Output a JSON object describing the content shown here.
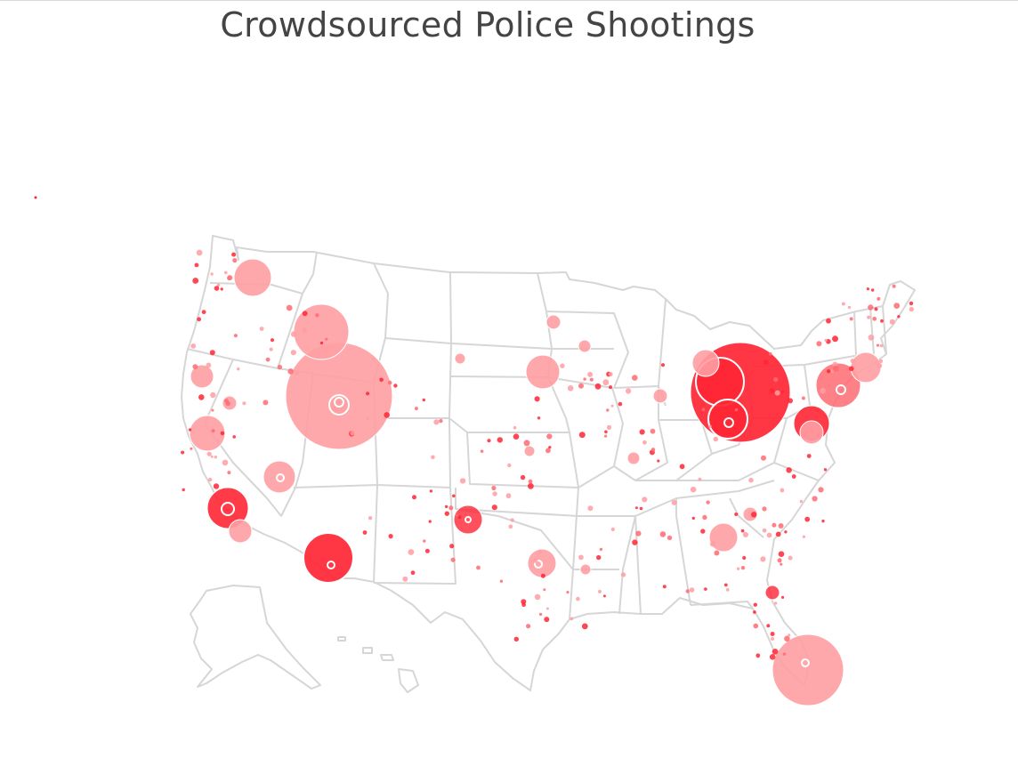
{
  "title": "Crowdsourced Police Shootings",
  "colors": {
    "bubble_light": "#ff9ea3",
    "bubble_mid": "#ff6b73",
    "bubble_dark": "#ff2634",
    "state_border": "#d6d6d6"
  },
  "chart_data": {
    "type": "scatter",
    "title": "Crowdsourced Police Shootings",
    "map": "United States (Albers USA)",
    "encoding": "bubble size = number of incidents",
    "legend": "none",
    "note": "bubble locations read as approximate lon/lat of cities",
    "points": [
      {
        "lon": -122.7,
        "lat": 45.5,
        "size": 20
      },
      {
        "lon": -116.2,
        "lat": 43.6,
        "size": 30
      },
      {
        "lon": -112.0,
        "lat": 40.7,
        "size": 90
      },
      {
        "lon": -111.9,
        "lat": 40.8,
        "size": 8
      },
      {
        "lon": -121.5,
        "lat": 38.6,
        "size": 22
      },
      {
        "lon": -123.3,
        "lat": 40.8,
        "size": 12
      },
      {
        "lon": -115.1,
        "lat": 36.2,
        "size": 16
      },
      {
        "lon": -118.3,
        "lat": 34.1,
        "size": 36
      },
      {
        "lon": -117.2,
        "lat": 32.8,
        "size": 14
      },
      {
        "lon": -112.1,
        "lat": 33.4,
        "size": 40
      },
      {
        "lon": -97.5,
        "lat": 35.5,
        "size": 14
      },
      {
        "lon": -96.7,
        "lat": 40.8,
        "size": 22
      },
      {
        "lon": -95.4,
        "lat": 29.8,
        "size": 18
      },
      {
        "lon": -94.6,
        "lat": 39.1,
        "size": 8
      },
      {
        "lon": -84.5,
        "lat": 39.1,
        "size": 60
      },
      {
        "lon": -83.0,
        "lat": 40.0,
        "size": 68
      },
      {
        "lon": -81.7,
        "lat": 41.5,
        "size": 55
      },
      {
        "lon": -82.9,
        "lat": 42.3,
        "size": 22
      },
      {
        "lon": -80.0,
        "lat": 40.4,
        "size": 14
      },
      {
        "lon": -75.2,
        "lat": 39.9,
        "size": 36
      },
      {
        "lon": -76.6,
        "lat": 39.3,
        "size": 26
      },
      {
        "lon": -74.0,
        "lat": 40.7,
        "size": 22
      },
      {
        "lon": -84.4,
        "lat": 33.7,
        "size": 16
      },
      {
        "lon": -81.7,
        "lat": 30.3,
        "size": 8
      },
      {
        "lon": -80.2,
        "lat": 25.8,
        "size": 50
      },
      {
        "lon": -90.2,
        "lat": 38.6,
        "size": 8
      },
      {
        "lon": -87.6,
        "lat": 41.9,
        "size": 10
      },
      {
        "lon": -86.2,
        "lat": 39.8,
        "size": 8
      },
      {
        "lon": -93.3,
        "lat": 44.9,
        "size": 10
      }
    ]
  }
}
